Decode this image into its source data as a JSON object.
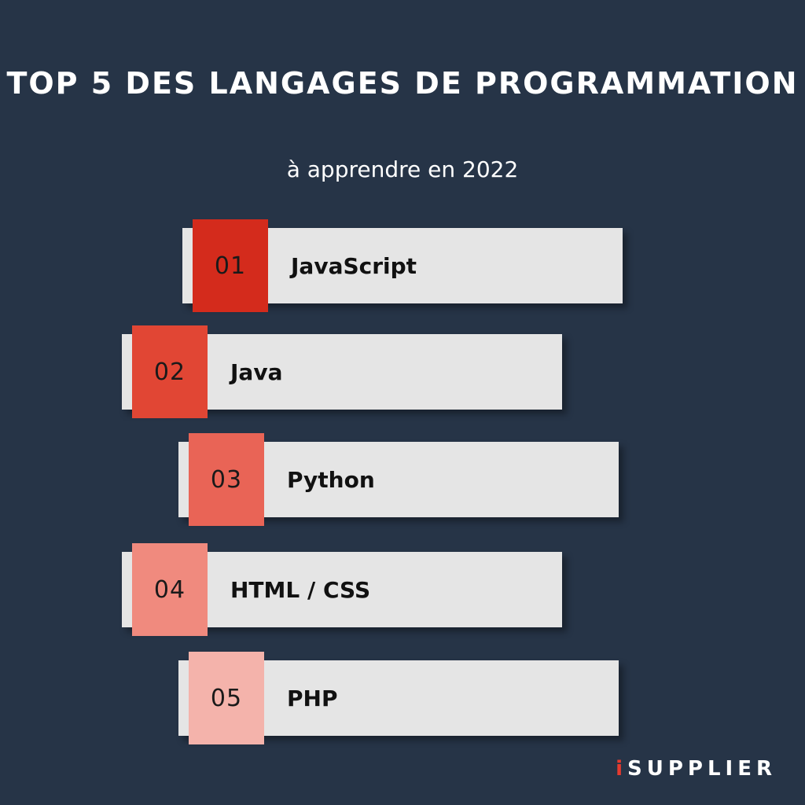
{
  "header": {
    "title": "TOP 5 DES LANGAGES DE PROGRAMMATION",
    "subtitle": "à apprendre en 2022"
  },
  "items": [
    {
      "number": "01",
      "label": "JavaScript",
      "color": "#d42b1c"
    },
    {
      "number": "02",
      "label": "Java",
      "color": "#e14634"
    },
    {
      "number": "03",
      "label": "Python",
      "color": "#e96456"
    },
    {
      "number": "04",
      "label": "HTML / CSS",
      "color": "#f08a7e"
    },
    {
      "number": "05",
      "label": "PHP",
      "color": "#f4b3ab"
    }
  ],
  "brand": {
    "prefix": "i",
    "name": "SUPPLIER",
    "accent_color": "#e63a2e"
  }
}
